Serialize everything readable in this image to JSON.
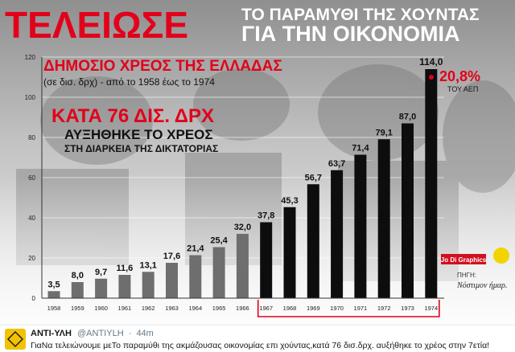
{
  "poster": {
    "headline_1": "ΤΕΛΕΙΩΣΕ",
    "headline_2a": "ΤΟ ΠΑΡΑΜΥΘΙ ΤΗΣ ΧΟΥΝΤΑΣ",
    "headline_2b": "ΓΙΑ ΤΗΝ ΟΙΚΟΝΟΜΙΑ",
    "subtitle": "ΔΗΜΟΣΙΟ ΧΡΕΟΣ ΤΗΣ ΕΛΛΑΔΑΣ",
    "subtitle_note": "(σε δισ. δρχ) - από το 1958 έως το 1974",
    "callout_1": "ΚΑΤΑ 76 ΔΙΣ. ΔΡΧ",
    "callout_2": "ΑΥΞΗΘΗΚΕ ΤΟ ΧΡΕΟΣ",
    "callout_3": "ΣΤΗ ΔΙΑΡΚΕΙΑ ΤΗΣ ΔΙΚΤΑΤΟΡΙΑΣ",
    "gdp_share": "20,8%",
    "gdp_label": "ΤΟΥ ΑΕΠ",
    "credit": "Jo Di Graphics",
    "source_label": "ΠΗΓΗ:",
    "source_name": "Νόστιμον ήμαρ."
  },
  "chart_data": {
    "type": "bar",
    "categories": [
      "1958",
      "1959",
      "1960",
      "1961",
      "1962",
      "1963",
      "1964",
      "1965",
      "1966",
      "1967",
      "1968",
      "1969",
      "1970",
      "1971",
      "1972",
      "1973",
      "1974"
    ],
    "values": [
      3.5,
      8.0,
      9.7,
      11.6,
      13.1,
      17.6,
      21.4,
      25.4,
      32.0,
      37.8,
      45.3,
      56.7,
      63.7,
      71.4,
      79.1,
      87.0,
      114.0
    ],
    "value_labels": [
      "3,5",
      "8,0",
      "9,7",
      "11,6",
      "13,1",
      "17,6",
      "21,4",
      "25,4",
      "32,0",
      "37,8",
      "45,3",
      "56,7",
      "63,7",
      "71,4",
      "79,1",
      "87,0",
      "114,0"
    ],
    "yticks": [
      0,
      20,
      40,
      60,
      80,
      100,
      120
    ],
    "ylim": [
      0,
      120
    ],
    "highlight_range": [
      "1967",
      "1974"
    ],
    "colors": {
      "pre_dictatorship": "#6e6e6e",
      "dictatorship": "#0d0d0d",
      "accent": "#e2001a"
    }
  },
  "tweet": {
    "name": "ΑΝΤΙ-ΥΛΗ",
    "handle": "@ANTIYLH",
    "sep": "·",
    "time": "44m",
    "text": "ΓιαΝα τελειώνουμε μεΤο παραμύθι της ακμάζουσας οικονομίας επι χούντας,κατά 76 δισ.δρχ. αυξήθηκε το χρέος στην 7ετία!"
  }
}
